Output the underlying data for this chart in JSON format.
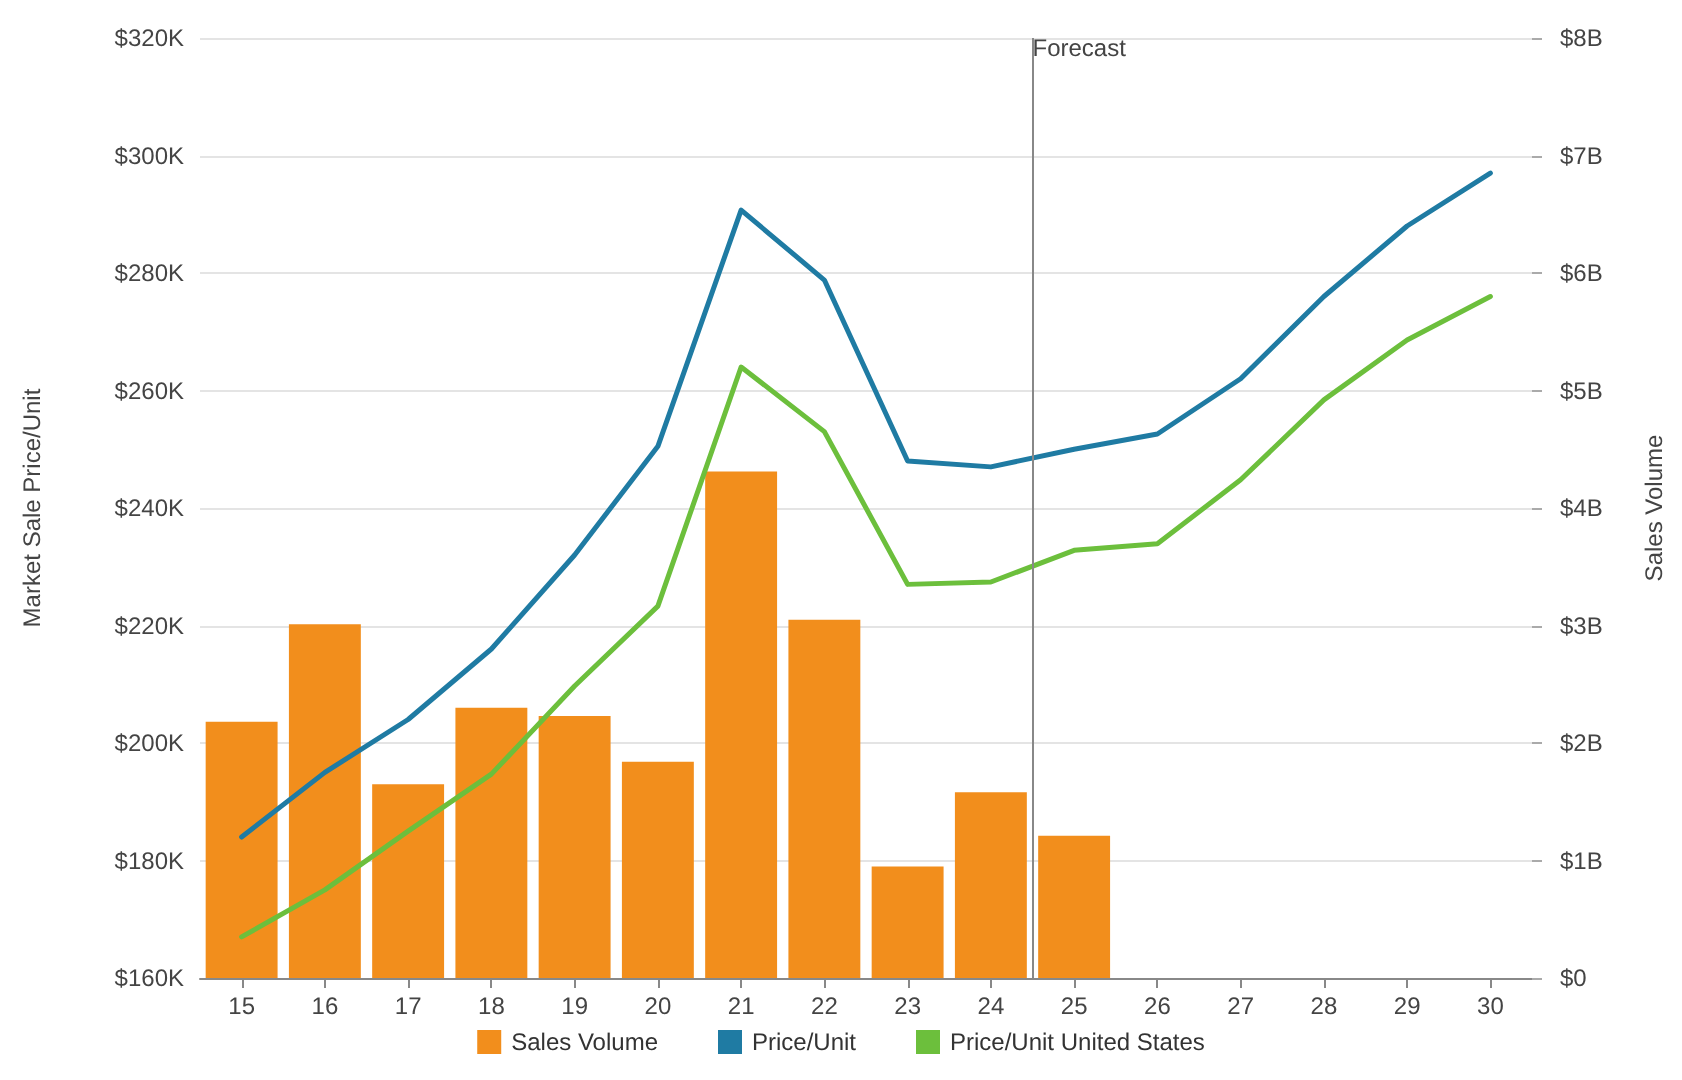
{
  "chart_data": {
    "type": "bar",
    "ylabel": "Market Sale Price/Unit",
    "y2label": "Sales Volume",
    "x": [
      15,
      16,
      17,
      18,
      19,
      20,
      21,
      22,
      23,
      24,
      25,
      26,
      27,
      28,
      29,
      30
    ],
    "xlim": [
      14.5,
      30.5
    ],
    "xticks": [
      15,
      16,
      17,
      18,
      19,
      20,
      21,
      22,
      23,
      24,
      25,
      26,
      27,
      28,
      29,
      30
    ],
    "series": [
      {
        "name": "Sales Volume",
        "axis": "y2",
        "color": "#f28e1c",
        "values": [
          2.18,
          3.01,
          1.65,
          2.3,
          2.23,
          1.84,
          4.31,
          3.05,
          0.95,
          1.58,
          1.21,
          null,
          null,
          null,
          null,
          null
        ]
      },
      {
        "name": "Price/Unit",
        "type": "line",
        "color": "#1f7ba3",
        "values": [
          184,
          195,
          204,
          216,
          232,
          250.5,
          290.7,
          278.8,
          248,
          247,
          250,
          252.6,
          262,
          276,
          288,
          297
        ]
      },
      {
        "name": "Price/Unit United States",
        "type": "line",
        "color": "#6cbf3c",
        "values": [
          167,
          175,
          185,
          194.7,
          209.7,
          223.3,
          264,
          253,
          227,
          227.4,
          232.8,
          233.9,
          244.8,
          258.4,
          268.6,
          276
        ]
      }
    ],
    "ylim": [
      160,
      320
    ],
    "yticks": [
      {
        "value": 160,
        "label": "$160K"
      },
      {
        "value": 180,
        "label": "$180K"
      },
      {
        "value": 200,
        "label": "$200K"
      },
      {
        "value": 220,
        "label": "$220K"
      },
      {
        "value": 240,
        "label": "$240K"
      },
      {
        "value": 260,
        "label": "$260K"
      },
      {
        "value": 280,
        "label": "$280K"
      },
      {
        "value": 300,
        "label": "$300K"
      },
      {
        "value": 320,
        "label": "$320K"
      }
    ],
    "y2lim": [
      0,
      8
    ],
    "y2ticks": [
      {
        "value": 0,
        "label": "$0"
      },
      {
        "value": 1,
        "label": "$1B"
      },
      {
        "value": 2,
        "label": "$2B"
      },
      {
        "value": 3,
        "label": "$3B"
      },
      {
        "value": 4,
        "label": "$4B"
      },
      {
        "value": 5,
        "label": "$5B"
      },
      {
        "value": 6,
        "label": "$6B"
      },
      {
        "value": 7,
        "label": "$7B"
      },
      {
        "value": 8,
        "label": "$8B"
      }
    ],
    "ref_lines": [
      {
        "axis": "x",
        "value": 24.5,
        "label": "Forecast",
        "color": "#888888"
      }
    ],
    "grid": "y",
    "legend": "bottom",
    "marker": "none",
    "line_style": "solid"
  }
}
